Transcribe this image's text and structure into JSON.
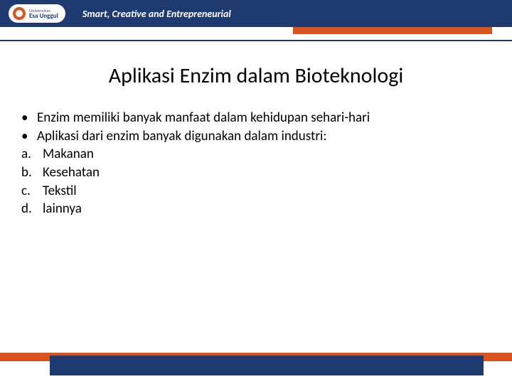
{
  "header": {
    "logo_top": "Universitas",
    "logo_bottom": "Esa Unggul",
    "tagline": "Smart, Creative and Entrepreneurial"
  },
  "slide": {
    "title": "Aplikasi Enzim dalam Bioteknologi",
    "bullets": [
      "Enzim memiliki banyak manfaat dalam kehidupan sehari-hari",
      "Aplikasi dari enzim banyak digunakan dalam industri:"
    ],
    "lettered": [
      {
        "mark": "a.",
        "text": "Makanan"
      },
      {
        "mark": "b.",
        "text": "Kesehatan"
      },
      {
        "mark": "c.",
        "text": "Tekstil"
      },
      {
        "mark": "d.",
        "text": "lainnya"
      }
    ]
  },
  "colors": {
    "brand_blue": "#1f3a6e",
    "brand_orange": "#d9531e"
  }
}
